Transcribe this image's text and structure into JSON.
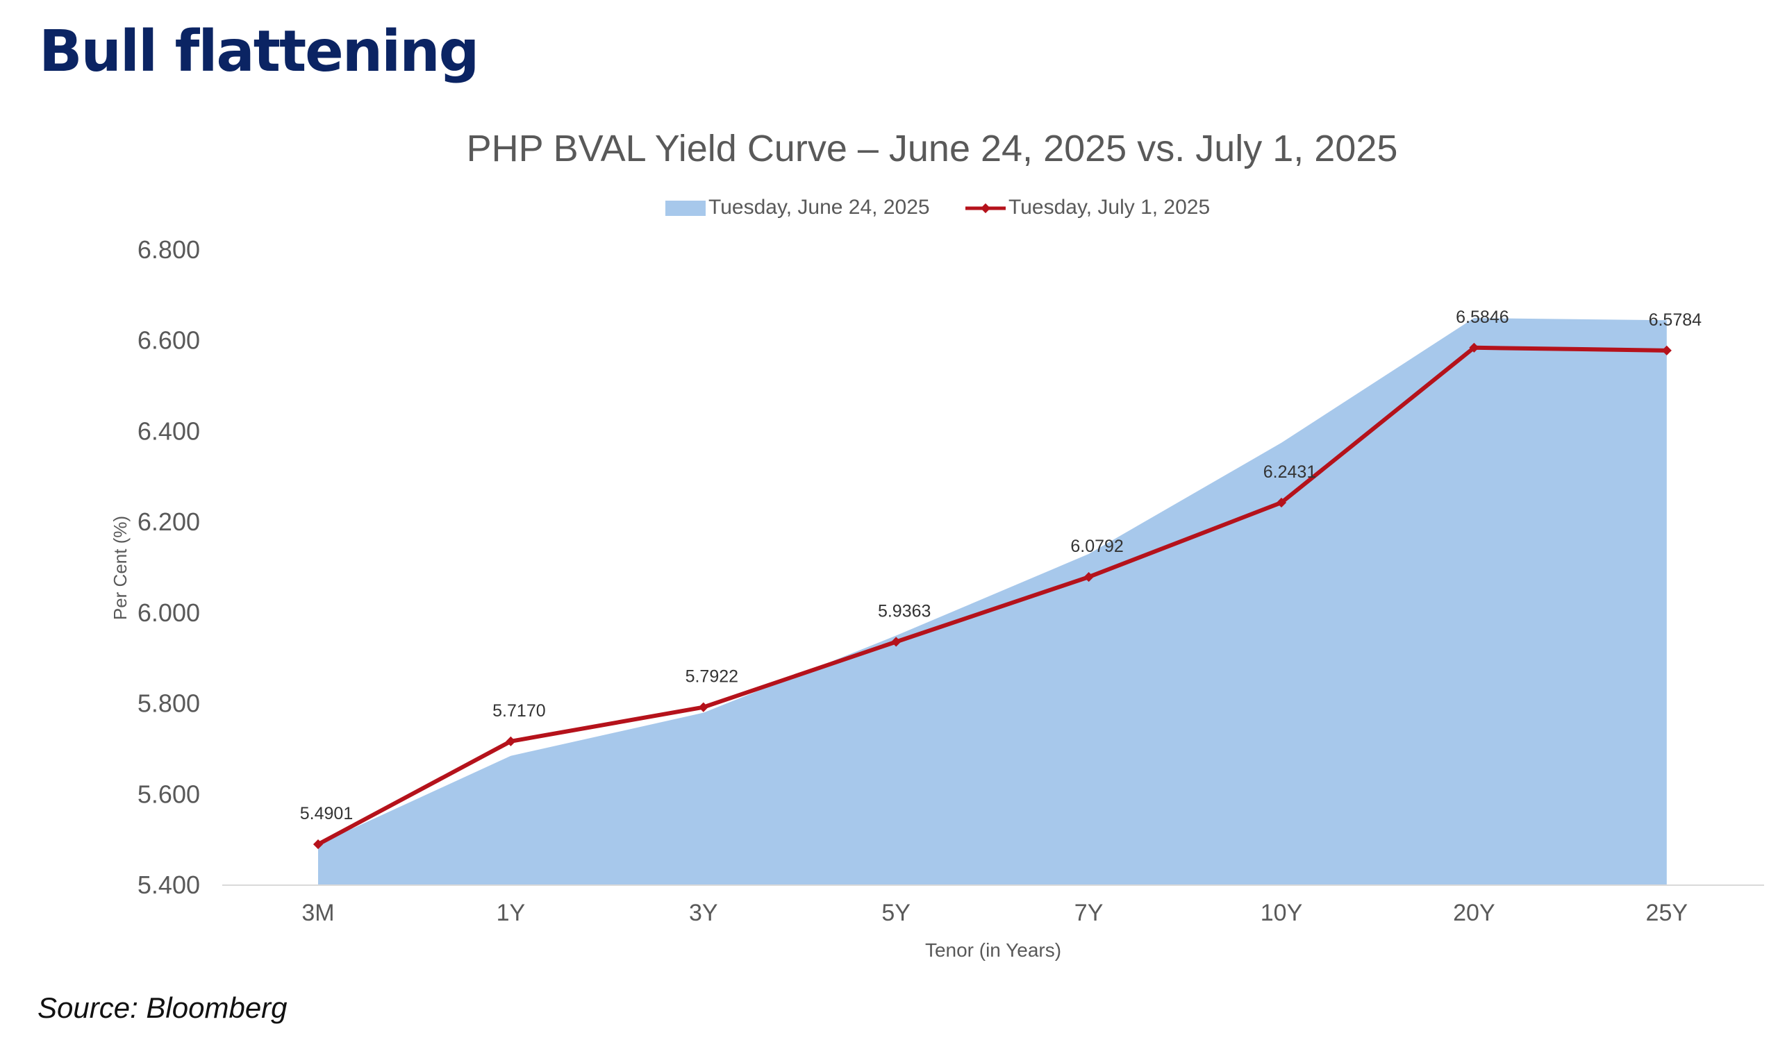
{
  "page": {
    "title": "Bull flattening",
    "source": "Source: Bloomberg"
  },
  "chart_data": {
    "type": "area",
    "title": "PHP BVAL Yield Curve – June 24, 2025 vs. July 1, 2025",
    "xlabel": "Tenor (in Years)",
    "ylabel": "Per Cent (%)",
    "categories": [
      "3M",
      "1Y",
      "3Y",
      "5Y",
      "7Y",
      "10Y",
      "20Y",
      "25Y"
    ],
    "ylim": [
      5.4,
      6.8
    ],
    "yticks": [
      "5.400",
      "5.600",
      "5.800",
      "6.000",
      "6.200",
      "6.400",
      "6.600",
      "6.800"
    ],
    "grid": false,
    "legend_position": "top",
    "series": [
      {
        "name": "Tuesday, June 24, 2025",
        "kind": "area",
        "color": "#a7c8eb",
        "values": [
          5.49,
          5.685,
          5.78,
          5.95,
          6.13,
          6.375,
          6.65,
          6.645
        ]
      },
      {
        "name": "Tuesday, July 1, 2025",
        "kind": "line",
        "color": "#b5121b",
        "values": [
          5.4901,
          5.717,
          5.7922,
          5.9363,
          6.0792,
          6.2431,
          6.5846,
          6.5784
        ],
        "labels": [
          "5.4901",
          "5.7170",
          "5.7922",
          "5.9363",
          "6.0792",
          "6.2431",
          "6.5846",
          "6.5784"
        ]
      }
    ]
  },
  "colors": {
    "title": "#0b2463",
    "axis_text": "#595959",
    "baseline": "#d9d9d9"
  }
}
